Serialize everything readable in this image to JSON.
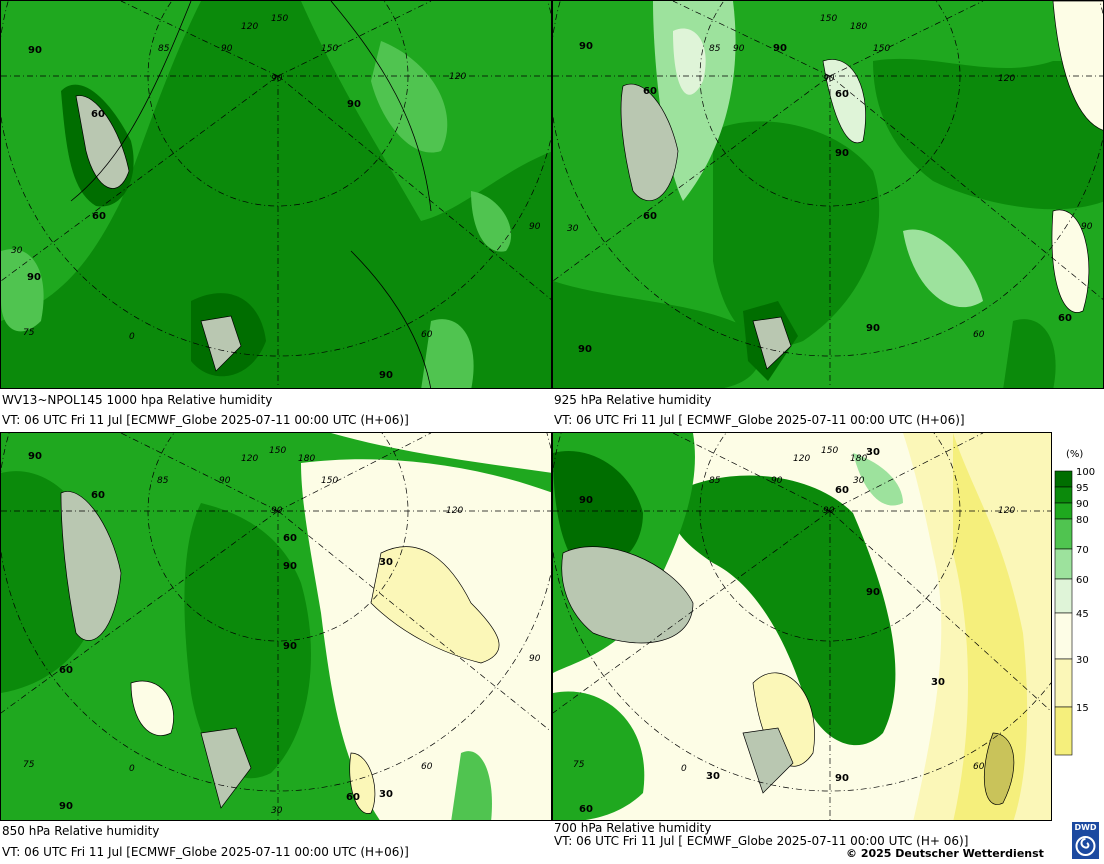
{
  "panels": [
    {
      "caption_line1": "WV13~NPOL145 1000 hpa Relative humidity",
      "caption_line2": "VT: 06 UTC Fri  11 Jul [ECMWF_Globe 2025-07-11 00:00 UTC  (H+06)]",
      "contour_labels": [
        "90",
        "60",
        "60",
        "90",
        "90",
        "90"
      ],
      "grid_labels": [
        "120",
        "150",
        "90",
        "85",
        "90",
        "150",
        "120",
        "30",
        "75",
        "0",
        "90",
        "60"
      ]
    },
    {
      "caption_line1": "925 hPa Relative humidity",
      "caption_line2": "VT: 06 UTC Fri  11 Jul [ ECMWF_Globe 2025-07-11 00:00 UTC  (H+06)]",
      "contour_labels": [
        "90",
        "60",
        "60",
        "60",
        "90",
        "60",
        "90",
        "90",
        "90"
      ],
      "grid_labels": [
        "150",
        "180",
        "85",
        "90",
        "150",
        "90",
        "120",
        "90",
        "30",
        "60"
      ]
    },
    {
      "caption_line1": "850 hPa  Relative humidity",
      "caption_line2": "VT: 06 UTC Fri  11 Jul [ECMWF_Globe 2025-07-11 00:00 UTC  (H+06)]",
      "contour_labels": [
        "90",
        "60",
        "60",
        "60",
        "90",
        "90",
        "30",
        "90",
        "60",
        "30"
      ],
      "grid_labels": [
        "120",
        "150",
        "180",
        "85",
        "90",
        "150",
        "120",
        "90",
        "60",
        "75",
        "0",
        "90",
        "30"
      ]
    },
    {
      "caption_line1": "700 hPa Relative humidity",
      "caption_line2": "VT: 06 UTC Fri  11 Jul [ ECMWF_Globe 2025-07-11 00:00 UTC  (H+ 06)]",
      "contour_labels": [
        "90",
        "60",
        "30",
        "90",
        "30",
        "30",
        "90",
        "60"
      ],
      "grid_labels": [
        "120",
        "150",
        "180",
        "85",
        "90",
        "30",
        "120",
        "75",
        "0",
        "60",
        "90"
      ]
    }
  ],
  "legend": {
    "unit": "(%)",
    "ticks": [
      "100",
      "95",
      "90",
      "80",
      "70",
      "60",
      "45",
      "30",
      "15"
    ],
    "colors": [
      "#006e00",
      "#0b8a0b",
      "#1fa81f",
      "#50c450",
      "#9de29d",
      "#dff4d8",
      "#fdfde6",
      "#fbf7b8",
      "#f5ef7c"
    ]
  },
  "colors": {
    "rh_100": "#006e00",
    "rh_95": "#0b8a0b",
    "rh_90": "#1fa81f",
    "rh_80": "#50c450",
    "rh_70": "#9de29d",
    "rh_60": "#dff4d8",
    "rh_45": "#fdfde6",
    "rh_30": "#fbf7b8",
    "rh_15": "#f5ef7c",
    "land_high": "#b9c7b1"
  },
  "logo": {
    "text": "DWD"
  },
  "copyright": "© 2025 Deutscher Wetterdienst"
}
